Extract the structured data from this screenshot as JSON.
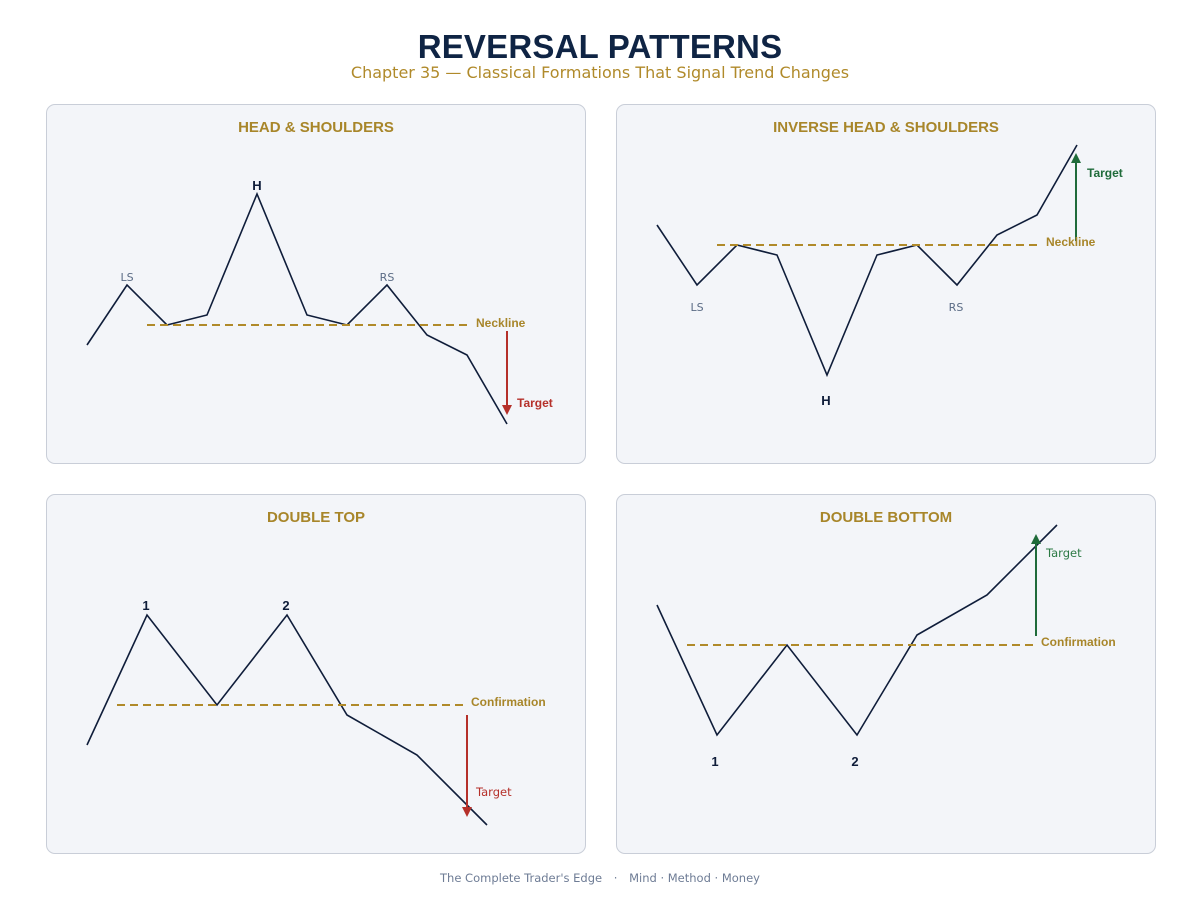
{
  "header": {
    "title": "REVERSAL PATTERNS",
    "subtitle": "Chapter 35 — Classical Formations That Signal Trend Changes"
  },
  "colors": {
    "title": "#0f2444",
    "accent_gold": "#b08a2a",
    "price_line": "#0f1d3a",
    "bearish_target": "#b5302a",
    "bullish_target": "#1f6b3a",
    "panel_background": "#f3f5f9"
  },
  "panels": {
    "head_shoulders": {
      "title": "HEAD & SHOULDERS",
      "labels": {
        "left_shoulder": "LS",
        "head": "H",
        "right_shoulder": "RS",
        "neckline": "Neckline",
        "target": "Target"
      }
    },
    "inverse_head_shoulders": {
      "title": "INVERSE HEAD & SHOULDERS",
      "labels": {
        "left_shoulder": "LS",
        "head": "H",
        "right_shoulder": "RS",
        "neckline": "Neckline",
        "target": "Target"
      }
    },
    "double_top": {
      "title": "DOUBLE TOP",
      "labels": {
        "peak_1": "1",
        "peak_2": "2",
        "confirmation": "Confirmation",
        "target": "Target"
      }
    },
    "double_bottom": {
      "title": "DOUBLE BOTTOM",
      "labels": {
        "trough_1": "1",
        "trough_2": "2",
        "confirmation": "Confirmation",
        "target": "Target"
      }
    }
  },
  "footer": {
    "book": "The Complete Trader's Edge",
    "separator": "·",
    "tagline": "Mind · Method · Money"
  }
}
